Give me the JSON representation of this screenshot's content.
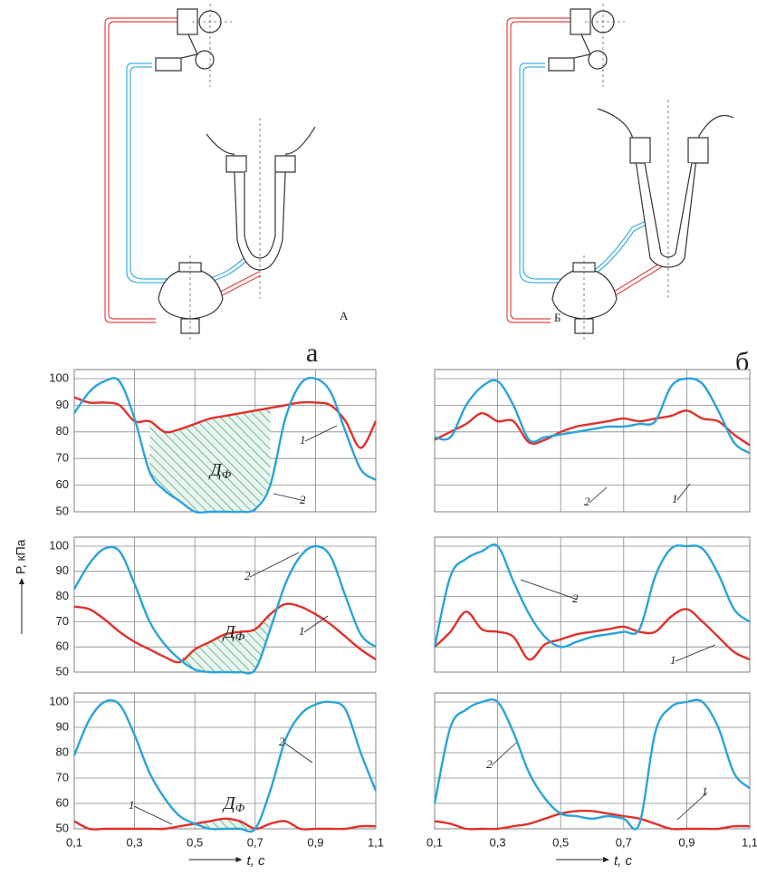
{
  "figure": {
    "diagram_labels": [
      "А",
      "Б"
    ],
    "panel_labels": [
      "а",
      "б"
    ],
    "y_axis_label": "Р, кПа"
  },
  "chart_data": [
    {
      "type": "line",
      "xlim": [
        0.1,
        1.1
      ],
      "ylim": [
        50,
        100
      ],
      "xticks": [
        0.1,
        0.3,
        0.5,
        0.7,
        0.9,
        1.1
      ],
      "yticks": [
        50,
        60,
        70,
        80,
        90,
        100
      ],
      "grid": true,
      "xtick_labels": false,
      "ytick_labels": true,
      "x": [
        0.1,
        0.15,
        0.2,
        0.25,
        0.3,
        0.35,
        0.4,
        0.45,
        0.5,
        0.55,
        0.6,
        0.65,
        0.7,
        0.75,
        0.8,
        0.85,
        0.9,
        0.95,
        1.0,
        1.05,
        1.1
      ],
      "series": [
        {
          "color": "#e0312b",
          "values": [
            93,
            91,
            91,
            90,
            84,
            84,
            80,
            81,
            83,
            85,
            86,
            87,
            88,
            89,
            90,
            91,
            91,
            90,
            84,
            74,
            84
          ]
        },
        {
          "color": "#2aa3d9",
          "values": [
            87,
            95,
            99,
            99,
            85,
            65,
            58,
            54,
            50,
            50,
            50,
            50,
            51,
            60,
            85,
            98,
            100,
            95,
            80,
            66,
            62
          ]
        }
      ],
      "shaded_range": [
        0.35,
        0.75
      ],
      "annotations": [
        {
          "text": "1"
        },
        {
          "text": "2"
        },
        {
          "text": "Д",
          "sub": "Ф"
        }
      ]
    },
    {
      "type": "line",
      "xlim": [
        0.1,
        1.1
      ],
      "ylim": [
        50,
        100
      ],
      "xticks": [
        0.1,
        0.3,
        0.5,
        0.7,
        0.9,
        1.1
      ],
      "yticks": [
        50,
        60,
        70,
        80,
        90,
        100
      ],
      "grid": true,
      "xtick_labels": false,
      "ytick_labels": false,
      "x": [
        0.1,
        0.15,
        0.2,
        0.25,
        0.3,
        0.35,
        0.4,
        0.45,
        0.5,
        0.55,
        0.6,
        0.65,
        0.7,
        0.75,
        0.8,
        0.85,
        0.9,
        0.95,
        1.0,
        1.05,
        1.1
      ],
      "series": [
        {
          "color": "#e0312b",
          "values": [
            77,
            80,
            83,
            87,
            84,
            84,
            76,
            77,
            80,
            82,
            83,
            84,
            85,
            84,
            85,
            86,
            88,
            85,
            84,
            79,
            75
          ]
        },
        {
          "color": "#2aa3d9",
          "values": [
            78,
            78,
            90,
            97,
            99,
            90,
            77,
            78,
            79,
            80,
            81,
            82,
            82,
            83,
            84,
            97,
            100,
            98,
            88,
            76,
            72
          ]
        }
      ],
      "annotations": [
        {
          "text": "2"
        },
        {
          "text": "1"
        }
      ]
    },
    {
      "type": "line",
      "xlim": [
        0.1,
        1.1
      ],
      "ylim": [
        50,
        100
      ],
      "xticks": [
        0.1,
        0.3,
        0.5,
        0.7,
        0.9,
        1.1
      ],
      "yticks": [
        50,
        60,
        70,
        80,
        90,
        100
      ],
      "grid": true,
      "xtick_labels": false,
      "ytick_labels": true,
      "x": [
        0.1,
        0.15,
        0.2,
        0.25,
        0.3,
        0.35,
        0.4,
        0.45,
        0.5,
        0.55,
        0.6,
        0.65,
        0.7,
        0.75,
        0.8,
        0.85,
        0.9,
        0.95,
        1.0,
        1.05,
        1.1
      ],
      "series": [
        {
          "color": "#e0312b",
          "values": [
            76,
            75,
            71,
            66,
            62,
            59,
            56,
            54,
            59,
            62,
            65,
            66,
            67,
            73,
            77,
            76,
            73,
            69,
            64,
            59,
            55
          ]
        },
        {
          "color": "#2aa3d9",
          "values": [
            83,
            93,
            99,
            98,
            85,
            70,
            61,
            55,
            51,
            50,
            50,
            50,
            51,
            67,
            85,
            96,
            100,
            96,
            80,
            65,
            60
          ]
        }
      ],
      "shaded_range": [
        0.45,
        0.75
      ],
      "annotations": [
        {
          "text": "2"
        },
        {
          "text": "1"
        },
        {
          "text": "Д",
          "sub": "Ф"
        }
      ]
    },
    {
      "type": "line",
      "xlim": [
        0.1,
        1.1
      ],
      "ylim": [
        50,
        100
      ],
      "xticks": [
        0.1,
        0.3,
        0.5,
        0.7,
        0.9,
        1.1
      ],
      "yticks": [
        50,
        60,
        70,
        80,
        90,
        100
      ],
      "grid": true,
      "xtick_labels": false,
      "ytick_labels": false,
      "x": [
        0.1,
        0.15,
        0.2,
        0.25,
        0.3,
        0.35,
        0.4,
        0.45,
        0.5,
        0.55,
        0.6,
        0.65,
        0.7,
        0.75,
        0.8,
        0.85,
        0.9,
        0.95,
        1.0,
        1.05,
        1.1
      ],
      "series": [
        {
          "color": "#e0312b",
          "values": [
            60,
            66,
            74,
            67,
            66,
            64,
            55,
            61,
            63,
            65,
            66,
            67,
            68,
            66,
            66,
            72,
            75,
            70,
            64,
            58,
            55
          ]
        },
        {
          "color": "#2aa3d9",
          "values": [
            60,
            88,
            95,
            98,
            100,
            86,
            73,
            64,
            60,
            62,
            64,
            65,
            66,
            67,
            88,
            99,
            100,
            99,
            89,
            75,
            70
          ]
        }
      ],
      "annotations": [
        {
          "text": "2"
        },
        {
          "text": "1"
        }
      ]
    },
    {
      "type": "line",
      "xlim": [
        0.1,
        1.1
      ],
      "ylim": [
        50,
        100
      ],
      "xticks": [
        {
          "value": 0.1,
          "label": "0,1"
        },
        {
          "value": 0.3,
          "label": "0,3"
        },
        {
          "value": 0.5,
          "label": "0,5"
        },
        {
          "value": 0.7,
          "label": "0,7"
        },
        {
          "value": 0.9,
          "label": "0,9"
        },
        {
          "value": 1.1,
          "label": "1,1"
        }
      ],
      "yticks": [
        50,
        60,
        70,
        80,
        90,
        100
      ],
      "grid": true,
      "xtick_labels": true,
      "ytick_labels": true,
      "xlabel": "t, с",
      "x": [
        0.1,
        0.15,
        0.2,
        0.25,
        0.3,
        0.35,
        0.4,
        0.45,
        0.5,
        0.55,
        0.6,
        0.65,
        0.7,
        0.75,
        0.8,
        0.85,
        0.9,
        0.95,
        1.0,
        1.05,
        1.1
      ],
      "series": [
        {
          "color": "#e0312b",
          "values": [
            53,
            50,
            50,
            50,
            50,
            50,
            50,
            51,
            52,
            53,
            54,
            53,
            50,
            52,
            53,
            50,
            50,
            50,
            50,
            51,
            51
          ]
        },
        {
          "color": "#2aa3d9",
          "values": [
            79,
            93,
            100,
            99,
            87,
            72,
            62,
            55,
            52,
            50,
            50,
            50,
            50,
            65,
            85,
            95,
            99,
            100,
            97,
            80,
            65
          ]
        }
      ],
      "shaded_range": [
        0.5,
        0.7
      ],
      "annotations": [
        {
          "text": "1"
        },
        {
          "text": "2"
        },
        {
          "text": "Д",
          "sub": "Ф"
        }
      ]
    },
    {
      "type": "line",
      "xlim": [
        0.1,
        1.1
      ],
      "ylim": [
        50,
        100
      ],
      "xticks": [
        {
          "value": 0.1,
          "label": "0,1"
        },
        {
          "value": 0.3,
          "label": "0,3"
        },
        {
          "value": 0.5,
          "label": "0,5"
        },
        {
          "value": 0.7,
          "label": "0,7"
        },
        {
          "value": 0.9,
          "label": "0,9"
        },
        {
          "value": 1.1,
          "label": "1,1"
        }
      ],
      "yticks": [
        50,
        60,
        70,
        80,
        90,
        100
      ],
      "grid": true,
      "xtick_labels": true,
      "ytick_labels": false,
      "xlabel": "t, с",
      "x": [
        0.1,
        0.15,
        0.2,
        0.25,
        0.3,
        0.35,
        0.4,
        0.45,
        0.5,
        0.55,
        0.6,
        0.65,
        0.7,
        0.75,
        0.8,
        0.85,
        0.9,
        0.95,
        1.0,
        1.05,
        1.1
      ],
      "series": [
        {
          "color": "#e0312b",
          "values": [
            53,
            52,
            50,
            50,
            50,
            51,
            52,
            54,
            56,
            57,
            57,
            56,
            55,
            54,
            52,
            50,
            50,
            50,
            50,
            51,
            51
          ]
        },
        {
          "color": "#2aa3d9",
          "values": [
            60,
            90,
            97,
            100,
            100,
            88,
            72,
            62,
            56,
            55,
            54,
            55,
            54,
            52,
            88,
            98,
            100,
            100,
            90,
            72,
            66
          ]
        }
      ],
      "annotations": [
        {
          "text": "2"
        },
        {
          "text": "1"
        }
      ]
    }
  ]
}
